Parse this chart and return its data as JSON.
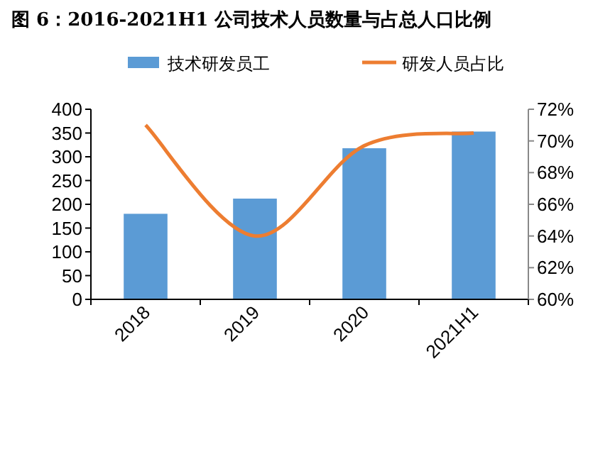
{
  "chart_data": {
    "type": "bar",
    "title": "图 6：2016-2021H1 公司技术人员数量与占总人口比例",
    "categories": [
      "2018",
      "2019",
      "2020",
      "2021H1"
    ],
    "series": [
      {
        "name": "技术研发员工",
        "color": "#5b9bd5",
        "values": [
          180,
          212,
          318,
          353
        ]
      },
      {
        "name": "研发人员占比",
        "type": "line",
        "axis": "y2",
        "color": "#ed7d31",
        "values": [
          71.0,
          64.0,
          69.7,
          70.5
        ]
      }
    ],
    "ylim": [
      0,
      400
    ],
    "yticks": [
      0,
      50,
      100,
      150,
      200,
      250,
      300,
      350,
      400
    ],
    "y2lim": [
      60,
      72
    ],
    "y2ticks": [
      {
        "value": 60,
        "label": "60%"
      },
      {
        "value": 62,
        "label": "62%"
      },
      {
        "value": 64,
        "label": "64%"
      },
      {
        "value": 66,
        "label": "66%"
      },
      {
        "value": 68,
        "label": "68%"
      },
      {
        "value": 70,
        "label": "70%"
      },
      {
        "value": 72,
        "label": "72%"
      }
    ],
    "legend": "top",
    "grid": false,
    "marker": "none",
    "line_style": "solid"
  }
}
